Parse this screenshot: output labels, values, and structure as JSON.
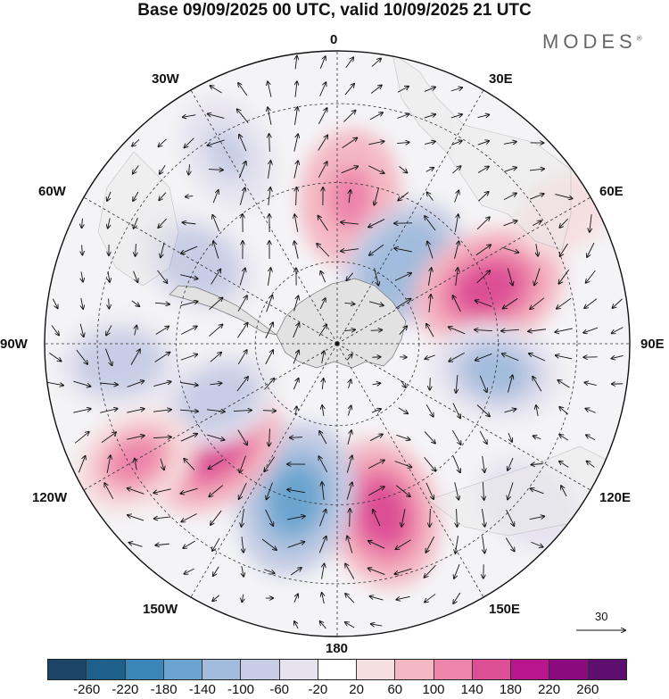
{
  "title": "Base 09/09/2025 00 UTC, valid 10/09/2025 21 UTC",
  "brand": "MODES",
  "brand_mark": "®",
  "longitude_labels": {
    "top": "0",
    "e30": "30E",
    "e60": "60E",
    "e90": "90E",
    "e120": "120E",
    "e150": "150E",
    "bottom": "180",
    "w150": "150W",
    "w120": "120W",
    "w90": "90W",
    "w60": "60W",
    "w30": "30W"
  },
  "reference_vector": {
    "value": "30"
  },
  "colorbar": {
    "colors": [
      "#1c4466",
      "#1f5f8b",
      "#3b86b8",
      "#6aa4cf",
      "#a1bcdc",
      "#c6cde5",
      "#e6e3ef",
      "#ffffff",
      "#f6dfe0",
      "#f4b8c3",
      "#ed84aa",
      "#dd4f95",
      "#b8168a",
      "#8b0a7e",
      "#5c0f6e"
    ],
    "ticks": [
      "-260",
      "-220",
      "-180",
      "-140",
      "-100",
      "-60",
      "-20",
      "20",
      "60",
      "100",
      "140",
      "180",
      "220",
      "260"
    ]
  },
  "anomaly_cells": [
    {
      "lon": 5,
      "colat": 0.5,
      "value": 180
    },
    {
      "lon": 40,
      "colat": 0.35,
      "value": -190
    },
    {
      "lon": 70,
      "colat": 0.55,
      "value": 240
    },
    {
      "lon": 100,
      "colat": 0.55,
      "value": -160
    },
    {
      "lon": 130,
      "colat": 0.85,
      "value": -80
    },
    {
      "lon": 165,
      "colat": 0.6,
      "value": 230
    },
    {
      "lon": 195,
      "colat": 0.55,
      "value": -250
    },
    {
      "lon": 230,
      "colat": 0.55,
      "value": 230
    },
    {
      "lon": 245,
      "colat": 0.45,
      "value": -120
    },
    {
      "lon": 265,
      "colat": 0.75,
      "value": -120
    },
    {
      "lon": 300,
      "colat": 0.55,
      "value": -130
    },
    {
      "lon": 330,
      "colat": 0.75,
      "value": -110
    },
    {
      "lon": 60,
      "colat": 0.9,
      "value": 60
    },
    {
      "lon": 240,
      "colat": 0.8,
      "value": 150
    }
  ]
}
